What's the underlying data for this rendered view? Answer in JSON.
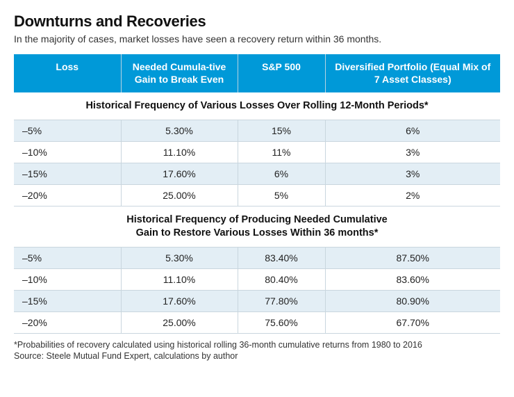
{
  "title": "Downturns and Recoveries",
  "subtitle": "In the majority of cases, market losses have seen a recovery return within 36 months.",
  "columns": {
    "c1": "Loss",
    "c2": "Needed Cumula‐tive Gain to Break Even",
    "c3": "S&P 500",
    "c4": "Diversified Portfolio (Equal Mix of 7 Asset Classes)"
  },
  "section1_title": "Historical Frequency of Various Losses Over Rolling 12‐Month Periods*",
  "section1_rows": [
    {
      "loss": "–5%",
      "gain": "5.30%",
      "sp": "15%",
      "div": "6%"
    },
    {
      "loss": "–10%",
      "gain": "11.10%",
      "sp": "11%",
      "div": "3%"
    },
    {
      "loss": "–15%",
      "gain": "17.60%",
      "sp": "6%",
      "div": "3%"
    },
    {
      "loss": "–20%",
      "gain": "25.00%",
      "sp": "5%",
      "div": "2%"
    }
  ],
  "section2_title": "Historical Frequency of Producing Needed Cumulative\nGain to Restore Various Losses Within 36 months*",
  "section2_rows": [
    {
      "loss": "–5%",
      "gain": "5.30%",
      "sp": "83.40%",
      "div": "87.50%"
    },
    {
      "loss": "–10%",
      "gain": "11.10%",
      "sp": "80.40%",
      "div": "83.60%"
    },
    {
      "loss": "–15%",
      "gain": "17.60%",
      "sp": "77.80%",
      "div": "80.90%"
    },
    {
      "loss": "–20%",
      "gain": "25.00%",
      "sp": "75.60%",
      "div": "67.70%"
    }
  ],
  "footnote_line1": "*Probabilities of recovery calculated using historical rolling 36‐month cumulative returns from 1980 to 2016",
  "footnote_line2": "Source:  Steele Mutual Fund Expert, calculations by author",
  "colors": {
    "header_bg": "#0099d8",
    "header_text": "#ffffff",
    "row_shade": "#e3eef5",
    "border": "#c9d6de"
  }
}
